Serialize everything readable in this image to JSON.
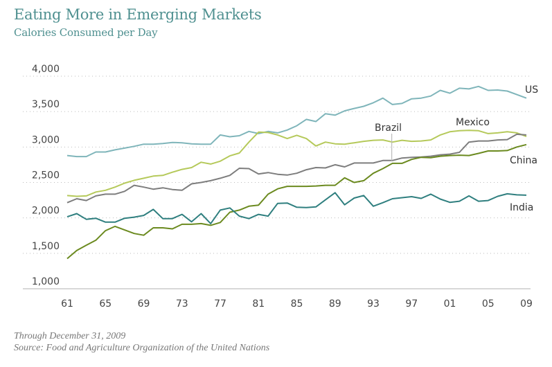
{
  "chart_data": {
    "type": "line",
    "title": "Eating More in Emerging Markets",
    "subtitle": "Calories Consumed per Day",
    "xlabel": "",
    "ylabel": "",
    "x": [
      1961,
      1962,
      1963,
      1964,
      1965,
      1966,
      1967,
      1968,
      1969,
      1970,
      1971,
      1972,
      1973,
      1974,
      1975,
      1976,
      1977,
      1978,
      1979,
      1980,
      1981,
      1982,
      1983,
      1984,
      1985,
      1986,
      1987,
      1988,
      1989,
      1990,
      1991,
      1992,
      1993,
      1994,
      1995,
      1996,
      1997,
      1998,
      1999,
      2000,
      2001,
      2002,
      2003,
      2004,
      2005,
      2006,
      2007,
      2008,
      2009
    ],
    "x_tick_labels": [
      "61",
      "65",
      "69",
      "73",
      "77",
      "81",
      "85",
      "89",
      "93",
      "97",
      "01",
      "05",
      "09"
    ],
    "x_tick_values": [
      1961,
      1965,
      1969,
      1973,
      1977,
      1981,
      1985,
      1989,
      1993,
      1997,
      2001,
      2005,
      2009
    ],
    "ylim": [
      1000,
      4000
    ],
    "y_tick_labels": [
      "1,000",
      "1,500",
      "2,000",
      "2,500",
      "3,000",
      "3,500",
      "4,000"
    ],
    "y_tick_values": [
      1000,
      1500,
      2000,
      2500,
      3000,
      3500,
      4000
    ],
    "grid": "horizontal dotted",
    "legend": "inline labels at line ends",
    "series": [
      {
        "name": "US",
        "color": "#7fb5ba",
        "values": [
          2880,
          2865,
          2865,
          2930,
          2930,
          2960,
          2985,
          3010,
          3040,
          3040,
          3050,
          3065,
          3060,
          3045,
          3040,
          3040,
          3170,
          3145,
          3160,
          3220,
          3190,
          3220,
          3200,
          3240,
          3300,
          3390,
          3360,
          3470,
          3450,
          3510,
          3545,
          3575,
          3625,
          3690,
          3600,
          3615,
          3680,
          3690,
          3720,
          3800,
          3760,
          3830,
          3820,
          3855,
          3800,
          3805,
          3790,
          3740,
          3690
        ]
      },
      {
        "name": "Mexico",
        "color": "#b5c95a",
        "values": [
          2315,
          2305,
          2310,
          2365,
          2390,
          2435,
          2490,
          2530,
          2560,
          2590,
          2600,
          2645,
          2685,
          2710,
          2785,
          2760,
          2800,
          2875,
          2915,
          3070,
          3210,
          3205,
          3170,
          3120,
          3165,
          3120,
          3015,
          3070,
          3045,
          3040,
          3060,
          3080,
          3095,
          3100,
          3070,
          3095,
          3080,
          3085,
          3100,
          3170,
          3215,
          3230,
          3235,
          3230,
          3190,
          3200,
          3215,
          3200,
          3150
        ]
      },
      {
        "name": "Brazil",
        "color": "#7d7d7d",
        "values": [
          2215,
          2270,
          2245,
          2310,
          2335,
          2335,
          2375,
          2460,
          2435,
          2405,
          2425,
          2400,
          2390,
          2480,
          2500,
          2525,
          2560,
          2600,
          2700,
          2695,
          2620,
          2640,
          2615,
          2605,
          2630,
          2680,
          2710,
          2705,
          2750,
          2720,
          2775,
          2775,
          2775,
          2810,
          2810,
          2845,
          2855,
          2860,
          2870,
          2890,
          2900,
          2925,
          3070,
          3085,
          3085,
          3100,
          3105,
          3180,
          3170
        ]
      },
      {
        "name": "China",
        "color": "#6b8a1f",
        "values": [
          1425,
          1540,
          1615,
          1685,
          1820,
          1880,
          1830,
          1780,
          1755,
          1860,
          1860,
          1845,
          1910,
          1910,
          1920,
          1895,
          1935,
          2080,
          2110,
          2165,
          2180,
          2335,
          2410,
          2445,
          2445,
          2445,
          2450,
          2460,
          2460,
          2565,
          2500,
          2525,
          2630,
          2695,
          2770,
          2770,
          2825,
          2855,
          2850,
          2870,
          2880,
          2885,
          2880,
          2910,
          2945,
          2945,
          2950,
          3000,
          3035
        ]
      },
      {
        "name": "India",
        "color": "#2f7f7f",
        "values": [
          2015,
          2060,
          1980,
          1995,
          1940,
          1940,
          1995,
          2010,
          2035,
          2120,
          1990,
          1990,
          2050,
          1945,
          2060,
          1920,
          2110,
          2140,
          2025,
          1990,
          2050,
          2025,
          2205,
          2210,
          2150,
          2145,
          2155,
          2255,
          2355,
          2185,
          2280,
          2315,
          2165,
          2215,
          2270,
          2285,
          2300,
          2275,
          2335,
          2265,
          2220,
          2235,
          2310,
          2235,
          2245,
          2305,
          2340,
          2325,
          2320
        ]
      }
    ]
  },
  "footnotes": {
    "date": "Through December 31, 2009",
    "source": "Source: Food and Agriculture Organization of the United Nations"
  },
  "colors": {
    "title": "#4f9090",
    "grid": "#bbbbbb",
    "axis": "#cccccc"
  }
}
